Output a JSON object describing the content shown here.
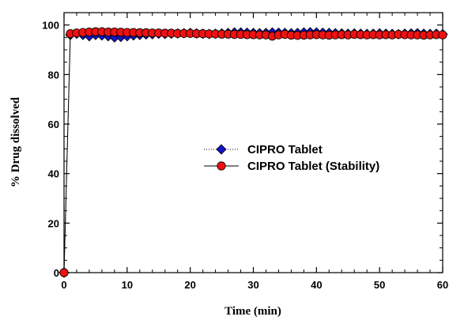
{
  "chart_data": {
    "type": "line",
    "xlabel": "Time (min)",
    "ylabel": "% Drug dissolved",
    "xlim": [
      0,
      60
    ],
    "ylim": [
      0,
      105
    ],
    "xticks": [
      0,
      10,
      20,
      30,
      40,
      50,
      60
    ],
    "yticks": [
      0,
      20,
      40,
      60,
      80,
      100
    ],
    "grid": false,
    "legend_position": "center-right",
    "series": [
      {
        "name": "CIPRO Tablet",
        "marker": "diamond",
        "line_style": "dotted",
        "color": "#1414c8",
        "x": [
          0,
          1,
          2,
          3,
          4,
          5,
          6,
          7,
          8,
          9,
          10,
          11,
          12,
          13,
          14,
          15,
          16,
          17,
          18,
          19,
          20,
          21,
          22,
          23,
          24,
          25,
          26,
          27,
          28,
          29,
          30,
          31,
          32,
          33,
          34,
          35,
          36,
          37,
          38,
          39,
          40,
          41,
          42,
          43,
          44,
          45,
          46,
          47,
          48,
          49,
          50,
          51,
          52,
          53,
          54,
          55,
          56,
          57,
          58,
          59,
          60
        ],
        "y": [
          0,
          96,
          96.5,
          96,
          95.5,
          96,
          95.8,
          95.5,
          95,
          95.2,
          95.5,
          95.8,
          96,
          96.2,
          96.3,
          96.5,
          96.4,
          96.5,
          96.6,
          96.7,
          96.8,
          96.6,
          96.5,
          96.4,
          96.5,
          96.6,
          96.8,
          97,
          97,
          96.9,
          96.8,
          96.7,
          96.8,
          97,
          96.9,
          96.8,
          96.7,
          96.8,
          97,
          97.1,
          97,
          96.9,
          96.8,
          96.7,
          96.6,
          96.5,
          96.6,
          96.5,
          96.4,
          96.5,
          96.6,
          96.5,
          96.4,
          96.3,
          96.5,
          96.6,
          96.7,
          96.5,
          96.4,
          96.5,
          96.3
        ]
      },
      {
        "name": "CIPRO Tablet (Stability)",
        "marker": "circle",
        "line_style": "solid",
        "color": "#ee1111",
        "x": [
          0,
          1,
          2,
          3,
          4,
          5,
          6,
          7,
          8,
          9,
          10,
          11,
          12,
          13,
          14,
          15,
          16,
          17,
          18,
          19,
          20,
          21,
          22,
          23,
          24,
          25,
          26,
          27,
          28,
          29,
          30,
          31,
          32,
          33,
          34,
          35,
          36,
          37,
          38,
          39,
          40,
          41,
          42,
          43,
          44,
          45,
          46,
          47,
          48,
          49,
          50,
          51,
          52,
          53,
          54,
          55,
          56,
          57,
          58,
          59,
          60
        ],
        "y": [
          0,
          96.5,
          96.8,
          97,
          97.2,
          97.3,
          97.3,
          97.2,
          97.2,
          97.1,
          97,
          97,
          96.9,
          96.9,
          96.8,
          96.8,
          96.7,
          96.7,
          96.6,
          96.6,
          96.6,
          96.5,
          96.5,
          96.4,
          96.4,
          96.3,
          96.3,
          96.2,
          96.2,
          96.1,
          96.1,
          96,
          96,
          95.5,
          96,
          96.2,
          95.9,
          95.8,
          95.9,
          96,
          96.1,
          96,
          95.9,
          96,
          96.1,
          96,
          96.2,
          96.1,
          96,
          96.1,
          96,
          96.1,
          96,
          96.2,
          96.1,
          96,
          96,
          95.9,
          96,
          96.1,
          96
        ]
      }
    ]
  }
}
